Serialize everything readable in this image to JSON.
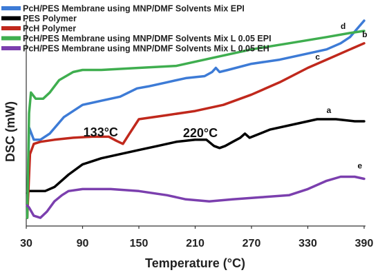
{
  "chart_data": {
    "type": "line",
    "xlabel": "Temperature (°C)",
    "ylabel": "DSC (mW)",
    "xlim": [
      30,
      390
    ],
    "ylim": [
      0,
      100
    ],
    "x_ticks": [
      "30",
      "90",
      "150",
      "210",
      "270",
      "330",
      "390"
    ],
    "legend_position": "top-left",
    "series": [
      {
        "name": "PcH/PES Membrane using  MNP/DMF Solvents Mix EPI",
        "color": "#3d7bd6",
        "label": "c",
        "x": [
          31,
          33,
          38,
          45,
          55,
          70,
          90,
          110,
          130,
          148,
          160,
          180,
          200,
          220,
          228,
          232,
          236,
          245,
          270,
          300,
          330,
          350,
          365,
          375,
          390
        ],
        "y": [
          4,
          48,
          42,
          42,
          45,
          53,
          59,
          61,
          63,
          67,
          68,
          70,
          72,
          73,
          75,
          77,
          75,
          76,
          79,
          81,
          84,
          86,
          89,
          92,
          100
        ]
      },
      {
        "name": "PES Polymer",
        "color": "#000000",
        "label": "a",
        "x": [
          31,
          33,
          40,
          50,
          60,
          75,
          90,
          110,
          130,
          150,
          170,
          190,
          210,
          222,
          230,
          236,
          242,
          250,
          258,
          263,
          268,
          290,
          320,
          340,
          360,
          380,
          390
        ],
        "y": [
          16,
          17,
          17,
          17,
          19,
          25,
          30,
          33,
          35,
          37,
          39,
          41,
          42,
          42,
          39,
          38,
          39,
          41,
          43,
          45,
          43,
          47,
          50,
          52,
          52,
          51,
          51
        ]
      },
      {
        "name": "PcH Polymer",
        "color": "#c0281c",
        "label": "b",
        "x": [
          31,
          34,
          38,
          45,
          60,
          80,
          100,
          118,
          126,
          133,
          140,
          150,
          180,
          210,
          240,
          270,
          300,
          330,
          355,
          375,
          390
        ],
        "y": [
          4,
          35,
          40,
          41,
          42,
          43,
          43.5,
          43.5,
          41.5,
          40,
          45,
          52,
          54,
          56,
          59,
          64,
          70,
          77,
          82,
          86,
          89
        ]
      },
      {
        "name": "PcH/PES Membrane using MNP/DMF Solvents Mix L 0.05 EPI",
        "color": "#3fae4f",
        "label": "d",
        "x": [
          31,
          33,
          35,
          40,
          48,
          55,
          65,
          80,
          90,
          110,
          150,
          190,
          230,
          270,
          310,
          350,
          375,
          390
        ],
        "y": [
          4,
          55,
          65,
          62,
          62,
          65,
          71,
          75,
          76,
          76,
          77,
          78,
          82,
          86,
          89,
          92,
          94,
          95
        ]
      },
      {
        "name": "PcH/PES Membrane using MNP/DMF Solvents Mix L 0.05 EH",
        "color": "#7b3fae",
        "label": "e",
        "x": [
          31,
          33,
          38,
          45,
          52,
          60,
          68,
          75,
          90,
          120,
          150,
          180,
          200,
          225,
          250,
          280,
          310,
          330,
          350,
          365,
          380,
          390
        ],
        "y": [
          10,
          9,
          5,
          4,
          7,
          12,
          15,
          17,
          18,
          18,
          17,
          15,
          13,
          12,
          13,
          14,
          15,
          18,
          22,
          24,
          24,
          23
        ]
      }
    ],
    "annotations": [
      {
        "text": "133°C",
        "x": 133,
        "y": 43
      },
      {
        "text": "220°C",
        "x": 220,
        "y": 42
      }
    ]
  }
}
